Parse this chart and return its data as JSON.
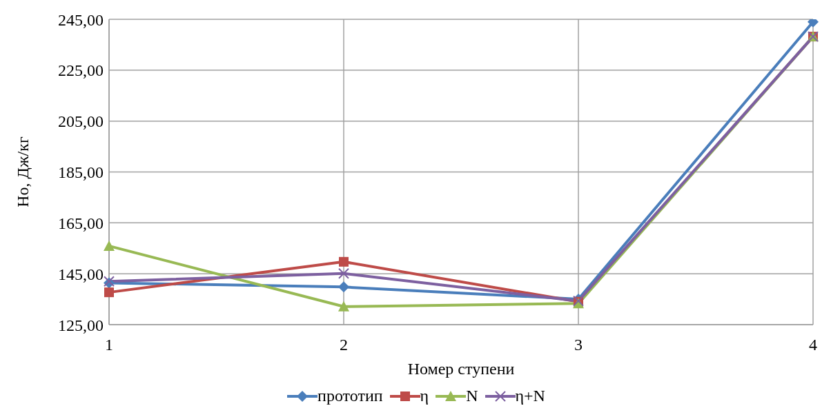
{
  "chart_data": {
    "type": "line",
    "xlabel": "Номер ступени",
    "ylabel": "Но, Дж/кг",
    "categories": [
      "1",
      "2",
      "3",
      "4"
    ],
    "series": [
      {
        "name": "прототип",
        "color": "#4a7ebb",
        "marker": "diamond",
        "values": [
          141.4,
          139.8,
          135,
          244
        ]
      },
      {
        "name": "η",
        "color": "#be4b48",
        "marker": "square",
        "values": [
          137.7,
          149.7,
          134,
          238.2
        ]
      },
      {
        "name": "N",
        "color": "#98b954",
        "marker": "triangle",
        "values": [
          155.9,
          132.1,
          133.3,
          238.2
        ]
      },
      {
        "name": "η+N",
        "color": "#7d60a0",
        "marker": "cross",
        "values": [
          142,
          145.1,
          134.3,
          238.2
        ]
      }
    ],
    "ylim": [
      125,
      245
    ],
    "yticks": [
      {
        "value": 125,
        "label": "125,00"
      },
      {
        "value": 145,
        "label": "145,00"
      },
      {
        "value": 165,
        "label": "165,00"
      },
      {
        "value": 185,
        "label": "185,00"
      },
      {
        "value": 205,
        "label": "205,00"
      },
      {
        "value": 225,
        "label": "225,00"
      },
      {
        "value": 245,
        "label": "245,00"
      }
    ],
    "grid": true,
    "legend": "bottom"
  }
}
